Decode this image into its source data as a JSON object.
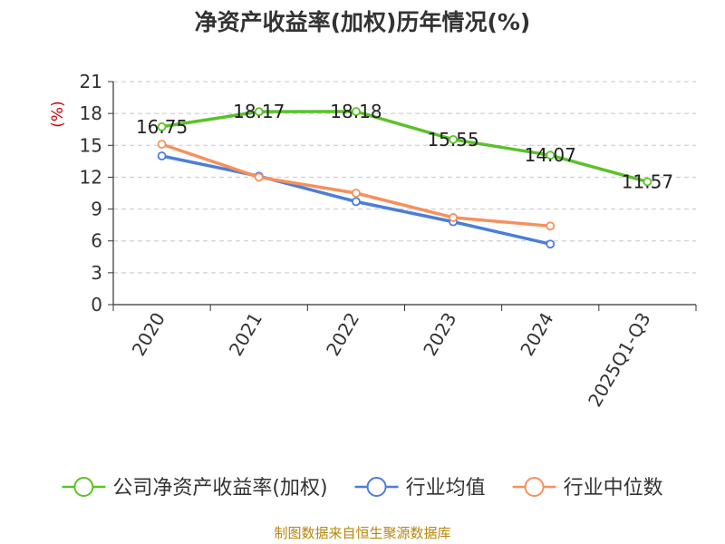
{
  "chart_data": {
    "type": "line",
    "title": "净资产收益率(加权)历年情况(%)",
    "ylabel": "(%)",
    "xlabel": "",
    "categories": [
      "2020",
      "2021",
      "2022",
      "2023",
      "2024",
      "2025Q1-Q3"
    ],
    "ylim": [
      0,
      21
    ],
    "yticks": [
      0,
      3,
      6,
      9,
      12,
      15,
      18,
      21
    ],
    "grid": true,
    "legend_position": "bottom",
    "series": [
      {
        "name": "公司净资产收益率(加权)",
        "color": "#5cc12a",
        "show_labels": true,
        "values": [
          16.75,
          18.17,
          18.18,
          15.55,
          14.07,
          11.57
        ]
      },
      {
        "name": "行业均值",
        "color": "#4a7fd8",
        "show_labels": false,
        "values": [
          14.0,
          12.1,
          9.7,
          7.8,
          5.7,
          null
        ]
      },
      {
        "name": "行业中位数",
        "color": "#f7905c",
        "show_labels": false,
        "values": [
          15.1,
          12.0,
          10.5,
          8.2,
          7.4,
          null
        ]
      }
    ],
    "source": "制图数据来自恒生聚源数据库"
  }
}
